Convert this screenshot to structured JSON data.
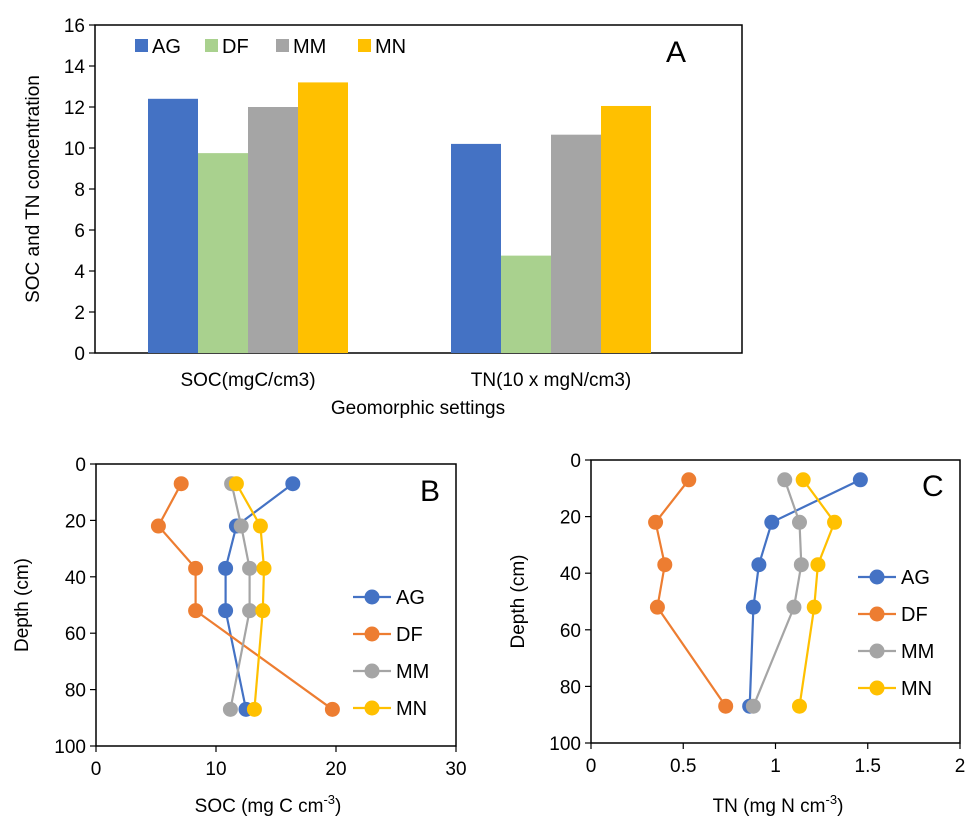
{
  "colors": {
    "AG": "#4472C4",
    "DF": "#A9D18E",
    "MM": "#A5A5A5",
    "MN": "#FFC000",
    "DF_line": "#ED7D31"
  },
  "chart_data": [
    {
      "panel": "A",
      "type": "bar",
      "categories": [
        "SOC(mgC/cm3)",
        "TN(10 x mgN/cm3)"
      ],
      "series": [
        {
          "name": "AG",
          "values": [
            12.4,
            10.2
          ]
        },
        {
          "name": "DF",
          "values": [
            9.75,
            4.75
          ]
        },
        {
          "name": "MM",
          "values": [
            12.0,
            10.65
          ]
        },
        {
          "name": "MN",
          "values": [
            13.2,
            12.05
          ]
        }
      ],
      "xlabel": "Geomorphic settings",
      "ylabel": "SOC and TN concentration",
      "ylim": [
        0,
        16
      ],
      "yticks": [
        "0",
        "2",
        "4",
        "6",
        "8",
        "10",
        "12",
        "14",
        "16"
      ],
      "legend": "top-left",
      "grid": false
    },
    {
      "panel": "B",
      "type": "line",
      "xlabel": "SOC (mg C cm",
      "xlabel_sup": "-3",
      "xlabel_end": ")",
      "ylabel": "Depth (cm)",
      "xlim": [
        0,
        30
      ],
      "ylim": [
        0,
        100
      ],
      "y_inverted": true,
      "xticks": [
        "0",
        "10",
        "20",
        "30"
      ],
      "yticks": [
        "0",
        "20",
        "40",
        "60",
        "80",
        "100"
      ],
      "legend": "right",
      "grid": false,
      "series": [
        {
          "name": "AG",
          "points": [
            [
              16.4,
              7
            ],
            [
              11.7,
              22
            ],
            [
              10.8,
              37
            ],
            [
              10.8,
              52
            ],
            [
              12.5,
              87
            ]
          ]
        },
        {
          "name": "DF",
          "points": [
            [
              7.1,
              7
            ],
            [
              5.2,
              22
            ],
            [
              8.3,
              37
            ],
            [
              8.3,
              52
            ],
            [
              19.7,
              87
            ]
          ]
        },
        {
          "name": "MM",
          "points": [
            [
              11.3,
              7
            ],
            [
              12.1,
              22
            ],
            [
              12.8,
              37
            ],
            [
              12.8,
              52
            ],
            [
              11.2,
              87
            ]
          ]
        },
        {
          "name": "MN",
          "points": [
            [
              11.7,
              7
            ],
            [
              13.7,
              22
            ],
            [
              14.0,
              37
            ],
            [
              13.9,
              52
            ],
            [
              13.2,
              87
            ]
          ]
        }
      ]
    },
    {
      "panel": "C",
      "type": "line",
      "xlabel": "TN (mg N cm",
      "xlabel_sup": "-3",
      "xlabel_end": ")",
      "ylabel": "Depth (cm)",
      "xlim": [
        0,
        2
      ],
      "ylim": [
        0,
        100
      ],
      "y_inverted": true,
      "xticks": [
        "0",
        "0.5",
        "1",
        "1.5",
        "2"
      ],
      "yticks": [
        "0",
        "20",
        "40",
        "60",
        "80",
        "100"
      ],
      "legend": "right",
      "grid": false,
      "series": [
        {
          "name": "AG",
          "points": [
            [
              1.46,
              7
            ],
            [
              0.98,
              22
            ],
            [
              0.91,
              37
            ],
            [
              0.88,
              52
            ],
            [
              0.86,
              87
            ]
          ]
        },
        {
          "name": "DF",
          "points": [
            [
              0.53,
              7
            ],
            [
              0.35,
              22
            ],
            [
              0.4,
              37
            ],
            [
              0.36,
              52
            ],
            [
              0.73,
              87
            ]
          ]
        },
        {
          "name": "MM",
          "points": [
            [
              1.05,
              7
            ],
            [
              1.13,
              22
            ],
            [
              1.14,
              37
            ],
            [
              1.1,
              52
            ],
            [
              0.88,
              87
            ]
          ]
        },
        {
          "name": "MN",
          "points": [
            [
              1.15,
              7
            ],
            [
              1.32,
              22
            ],
            [
              1.23,
              37
            ],
            [
              1.21,
              52
            ],
            [
              1.13,
              87
            ]
          ]
        }
      ]
    }
  ]
}
